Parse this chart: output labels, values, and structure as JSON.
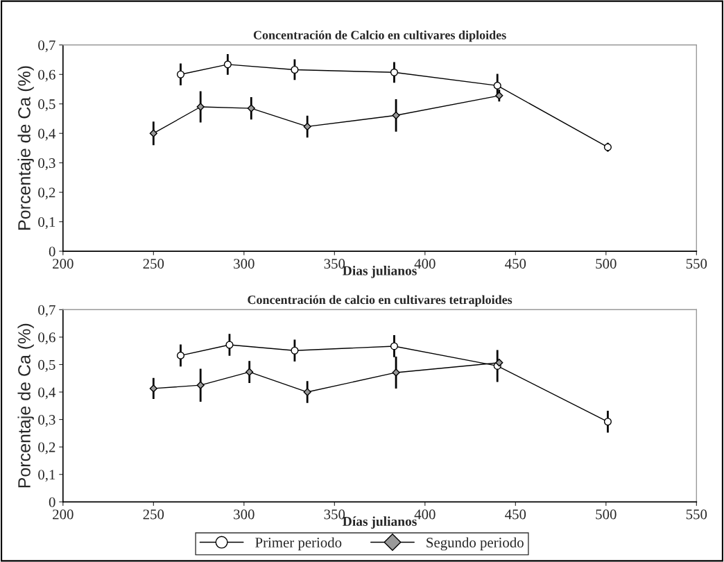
{
  "chart_data": [
    {
      "type": "line",
      "title": "Concentración de Calcio en cultivares diploides",
      "xlabel": "Dias julianos",
      "ylabel": "Porcentaje de Ca (%)",
      "xlim": [
        200,
        550
      ],
      "xticks": [
        200,
        250,
        300,
        350,
        400,
        450,
        500,
        550
      ],
      "ylim": [
        0,
        0.7
      ],
      "yticks": [
        0,
        {
          "value": 0.1,
          "label": "0,1"
        },
        {
          "value": 0.2,
          "label": "0,2"
        },
        {
          "value": 0.3,
          "label": "0,3"
        },
        {
          "value": 0.4,
          "label": "0,4"
        },
        {
          "value": 0.5,
          "label": "0,5"
        },
        {
          "value": 0.6,
          "label": "0,6"
        },
        {
          "value": 0.7,
          "label": "0,7"
        }
      ],
      "grid": false,
      "legend": "bottom",
      "series": [
        {
          "name": "Primer periodo",
          "color": "#000000",
          "marker": "circle",
          "x": [
            265,
            291,
            328,
            383,
            440,
            501
          ],
          "values": [
            0.6,
            0.634,
            0.616,
            0.607,
            0.562,
            0.353
          ],
          "errors": [
            0.037,
            0.035,
            0.035,
            0.035,
            0.04,
            0.015
          ]
        },
        {
          "name": "Segundo periodo",
          "color": "#000000",
          "marker": "diamond",
          "x": [
            250,
            276,
            304,
            335,
            384,
            441
          ],
          "values": [
            0.4,
            0.49,
            0.485,
            0.423,
            0.461,
            0.528
          ],
          "errors": [
            0.04,
            0.053,
            0.038,
            0.037,
            0.055,
            0.02
          ]
        }
      ]
    },
    {
      "type": "line",
      "title": "Concentración de calcio en cultivares tetraploides",
      "xlabel": "Días julianos",
      "ylabel": "Porcentaje de Ca (%)",
      "xlim": [
        200,
        550
      ],
      "xticks": [
        200,
        250,
        300,
        350,
        400,
        450,
        500,
        550
      ],
      "ylim": [
        0,
        0.7
      ],
      "yticks": [
        0,
        {
          "value": 0.1,
          "label": "0,1"
        },
        {
          "value": 0.2,
          "label": "0,2"
        },
        {
          "value": 0.3,
          "label": "0,3"
        },
        {
          "value": 0.4,
          "label": "0,4"
        },
        {
          "value": 0.5,
          "label": "0,5"
        },
        {
          "value": 0.6,
          "label": "0,6"
        },
        {
          "value": 0.7,
          "label": "0,7"
        }
      ],
      "grid": false,
      "series": [
        {
          "color": "#000000",
          "marker": "circle",
          "x": [
            265,
            292,
            328,
            383,
            440,
            501
          ],
          "values": [
            0.533,
            0.572,
            0.551,
            0.567,
            0.495,
            0.292
          ],
          "errors": [
            0.04,
            0.04,
            0.04,
            0.04,
            0.058,
            0.04
          ]
        },
        {
          "color": "#000000",
          "marker": "diamond",
          "x": [
            250,
            276,
            303,
            335,
            384,
            441
          ],
          "values": [
            0.413,
            0.425,
            0.473,
            0.4,
            0.471,
            0.507
          ],
          "errors": [
            0.038,
            0.06,
            0.04,
            0.04,
            0.058,
            null
          ]
        }
      ]
    }
  ]
}
